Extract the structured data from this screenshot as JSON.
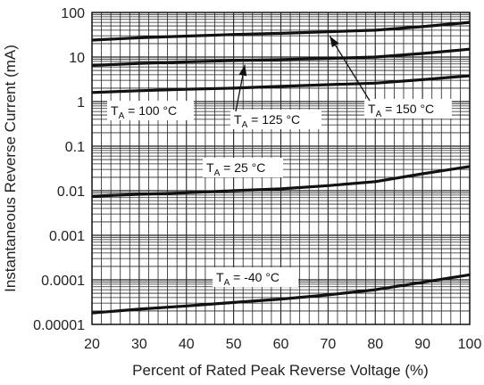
{
  "chart_data": {
    "type": "line",
    "title": "",
    "xlabel": "Percent of Rated Peak Reverse Voltage (%)",
    "ylabel": "Instantaneous Reverse Current (mA)",
    "xlim": [
      20,
      100
    ],
    "ylim": [
      1e-05,
      100
    ],
    "y_scale": "log",
    "grid": true,
    "x_ticks": [
      "20",
      "30",
      "40",
      "50",
      "60",
      "70",
      "80",
      "90",
      "100"
    ],
    "y_ticks": [
      "100",
      "10",
      "1",
      "0.1",
      "0.01",
      "0.001",
      "0.0001",
      "0.00001"
    ],
    "series": [
      {
        "name": "TA = 150 °C",
        "x": [
          20,
          30,
          40,
          50,
          60,
          70,
          80,
          90,
          100
        ],
        "y": [
          24,
          27,
          29.5,
          32,
          34,
          37,
          40,
          48,
          60
        ]
      },
      {
        "name": "TA = 125 °C",
        "x": [
          20,
          30,
          40,
          50,
          60,
          70,
          80,
          90,
          100
        ],
        "y": [
          6.5,
          7.2,
          7.8,
          8.3,
          8.8,
          9.3,
          10,
          12,
          15
        ]
      },
      {
        "name": "TA = 100 °C",
        "x": [
          20,
          30,
          40,
          50,
          60,
          70,
          80,
          90,
          100
        ],
        "y": [
          1.6,
          1.75,
          1.9,
          2.0,
          2.2,
          2.4,
          2.6,
          3.1,
          3.8
        ]
      },
      {
        "name": "TA = 25 °C",
        "x": [
          20,
          30,
          40,
          50,
          60,
          70,
          80,
          90,
          100
        ],
        "y": [
          0.0075,
          0.0083,
          0.009,
          0.01,
          0.011,
          0.013,
          0.016,
          0.024,
          0.035
        ]
      },
      {
        "name": "TA = -40 °C",
        "x": [
          20,
          30,
          40,
          50,
          60,
          70,
          80,
          90,
          100
        ],
        "y": [
          1.8e-05,
          2.2e-05,
          2.6e-05,
          3.1e-05,
          3.7e-05,
          4.6e-05,
          6e-05,
          8.8e-05,
          0.00013
        ]
      }
    ],
    "annotations": [
      {
        "series": 0,
        "main": "T",
        "sub": "A",
        "rest": " = 150 °C",
        "arrow_to_x": 70
      },
      {
        "series": 1,
        "main": "T",
        "sub": "A",
        "rest": " = 125 °C",
        "arrow_to_x": 52
      },
      {
        "series": 2,
        "main": "T",
        "sub": "A",
        "rest": " = 100 °C"
      },
      {
        "series": 3,
        "main": "T",
        "sub": "A",
        "rest": " = 25 °C"
      },
      {
        "series": 4,
        "main": "T",
        "sub": "A",
        "rest": " = -40 °C"
      }
    ]
  }
}
